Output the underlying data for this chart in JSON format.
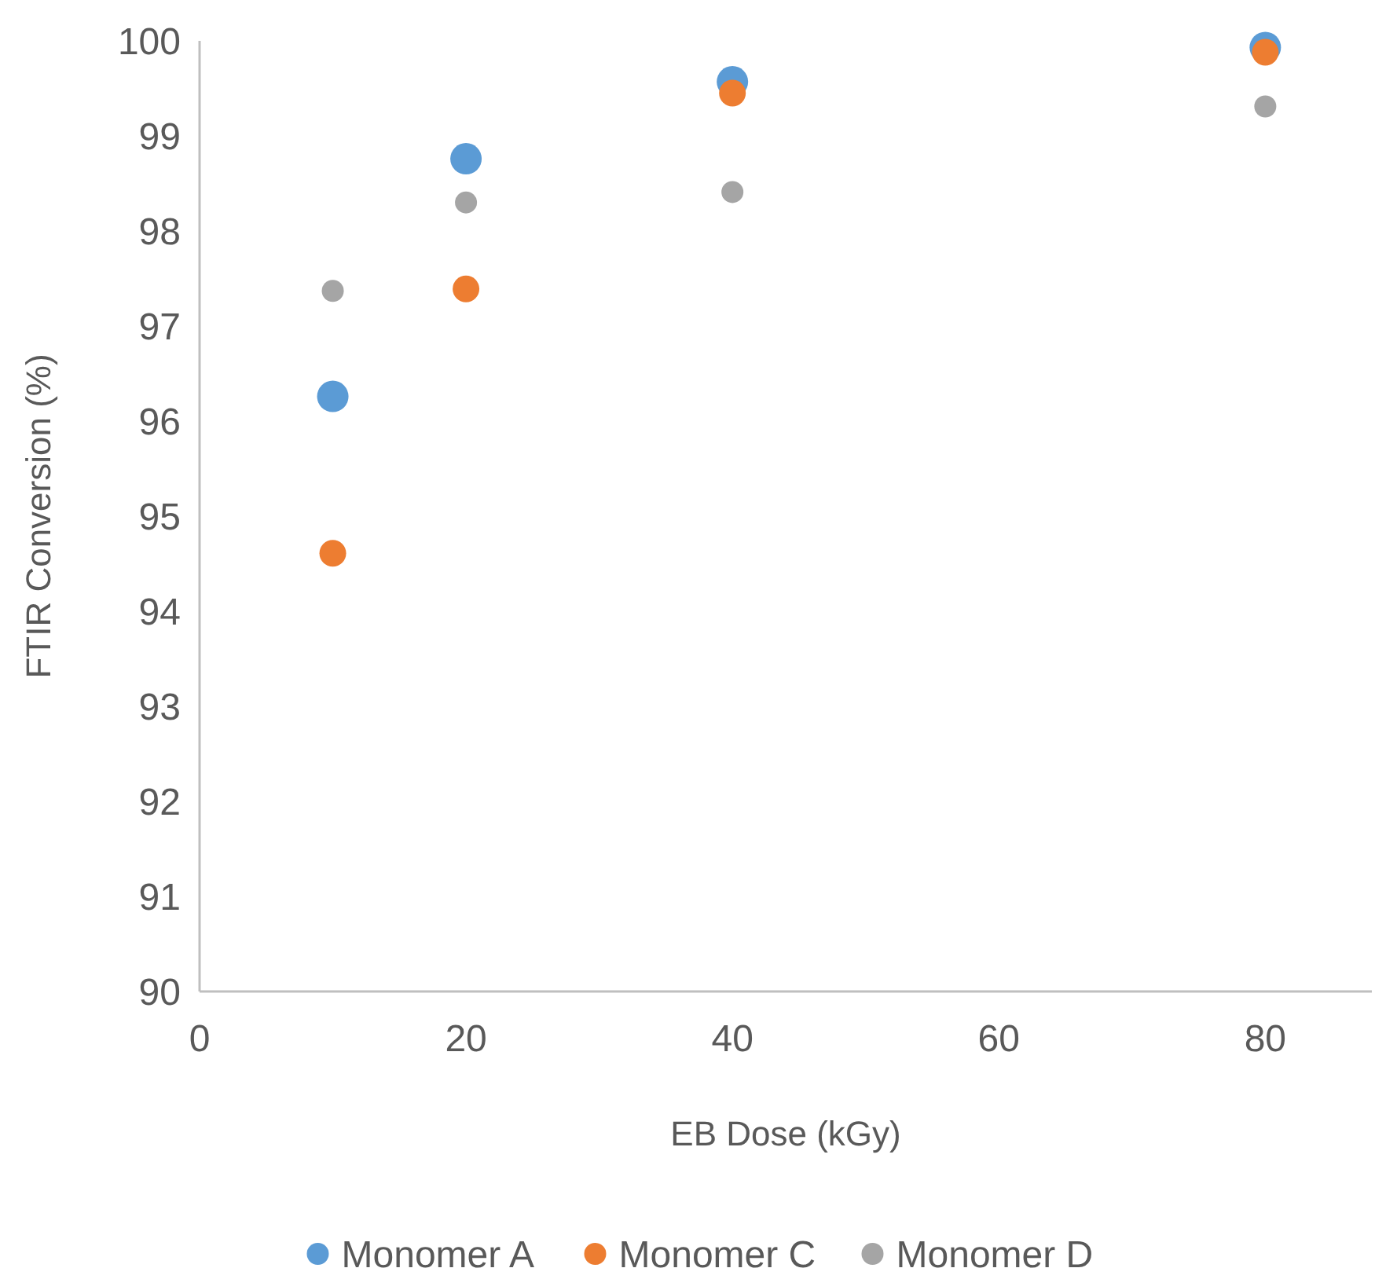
{
  "chart_data": {
    "type": "scatter",
    "xlabel": "EB Dose (kGy)",
    "ylabel": "FTIR Conversion (%)",
    "xlim": [
      0,
      88
    ],
    "xticks": [
      0,
      20,
      40,
      60,
      80
    ],
    "ylim": [
      90,
      100
    ],
    "yticks": [
      90,
      91,
      92,
      93,
      94,
      95,
      96,
      97,
      98,
      99,
      100
    ],
    "x": [
      10,
      20,
      40,
      80
    ],
    "grid": false,
    "legend": "bottom",
    "marker": "circle",
    "series": [
      {
        "name": "Monomer A",
        "color": "#5b9bd5",
        "values": [
          96.26,
          98.76,
          99.57,
          99.93
        ]
      },
      {
        "name": "Monomer C",
        "color": "#ed7d31",
        "values": [
          94.61,
          97.39,
          99.45,
          99.88
        ]
      },
      {
        "name": "Monomer D",
        "color": "#a5a5a5",
        "values": [
          97.37,
          98.3,
          98.41,
          99.31
        ]
      }
    ]
  }
}
